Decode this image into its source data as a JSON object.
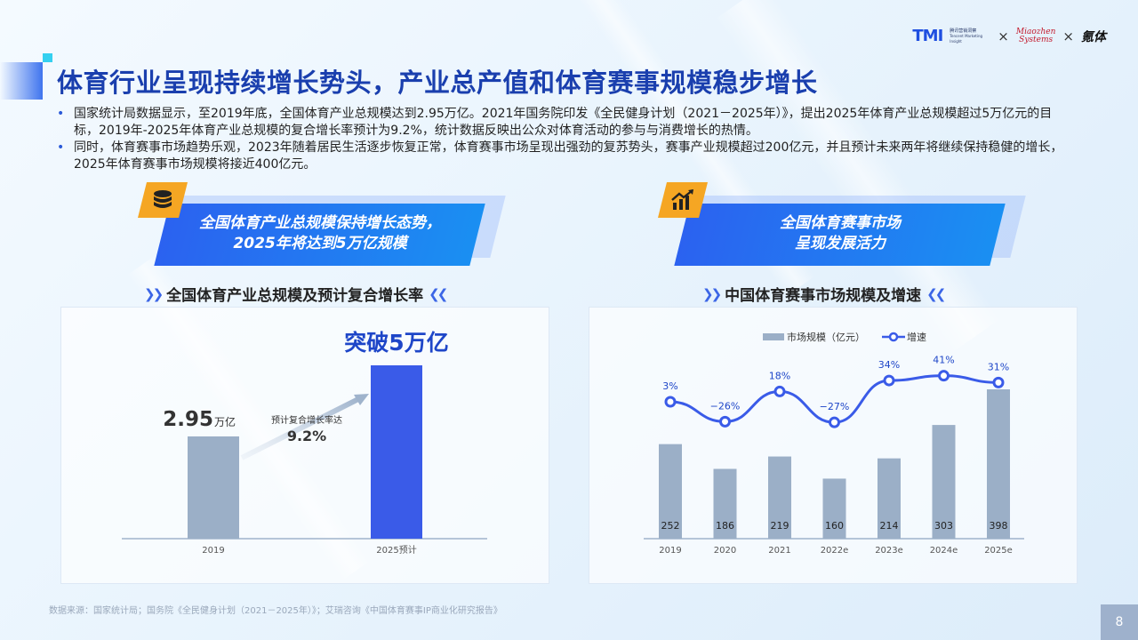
{
  "header": {
    "logos": {
      "tmi": "TMI",
      "tmi_sub": "腾讯营销洞察",
      "tmi_sub_en": "Tencent Marketing Insight",
      "sep1": "×",
      "miaozhen_line1": "Miaozhen",
      "miaozhen_line2": "Systems",
      "sep2": "×",
      "tiyu": "氪体"
    },
    "title": "体育行业呈现持续增长势头，产业总产值和体育赛事规模稳步增长"
  },
  "bullets": [
    "国家统计局数据显示，至2019年底，全国体育产业总规模达到2.95万亿。2021年国务院印发《全民健身计划（2021－2025年）》，提出2025年体育产业总规模超过5万亿元的目标，2019年-2025年体育产业总规模的复合增长率预计为9.2%，统计数据反映出公众对体育活动的参与与消费增长的热情。",
    "同时，体育赛事市场趋势乐观，2023年随着居民生活逐步恢复正常，体育赛事市场呈现出强劲的复苏势头，赛事产业规模超过200亿元，并且预计未来两年将继续保持稳健的增长，2025年体育赛事市场规模将接近400亿元。"
  ],
  "left_banner": {
    "line1": "全国体育产业总规模保持增长态势，",
    "line2": "2025年将达到5万亿规模",
    "icon": "database-icon"
  },
  "right_banner": {
    "line1": "全国体育赛事市场",
    "line2": "呈现发展活力",
    "icon": "trend-chart-icon"
  },
  "left_subtitle": "全国体育产业总规模及预计复合增长率",
  "right_subtitle": "中国体育赛事市场规模及增速",
  "colors": {
    "title": "#1a3fae",
    "bar_grey": "#9bafc7",
    "bar_blue": "#3a5be8",
    "line": "#3a5be8",
    "banner": "#2b62f0",
    "accent": "#f5a623"
  },
  "chart_data": [
    {
      "type": "bar",
      "categories": [
        "2019",
        "2025预计"
      ],
      "values": [
        2.95,
        5
      ],
      "unit": "万亿",
      "labels": {
        "first_value": "2.95",
        "first_unit": "万亿",
        "last": "突破5万亿"
      },
      "annotation": {
        "text": "预计复合增长率达",
        "value": "9.2%"
      }
    },
    {
      "type": "bar",
      "categories": [
        "2019",
        "2020",
        "2021",
        "2022e",
        "2023e",
        "2024e",
        "2025e"
      ],
      "series": [
        {
          "name": "市场规模（亿元）",
          "type": "bar",
          "values": [
            252,
            186,
            219,
            160,
            214,
            303,
            398
          ]
        },
        {
          "name": "增速",
          "type": "line",
          "values": [
            3,
            -26,
            18,
            -27,
            34,
            41,
            31
          ],
          "labels": [
            "3%",
            "−26%",
            "18%",
            "−27%",
            "34%",
            "41%",
            "31%"
          ]
        }
      ],
      "legend": "top"
    }
  ],
  "footer": {
    "source": "数据来源：国家统计局；国务院《全民健身计划（2021－2025年）》；艾瑞咨询《中国体育赛事IP商业化研究报告》",
    "page": "8"
  }
}
